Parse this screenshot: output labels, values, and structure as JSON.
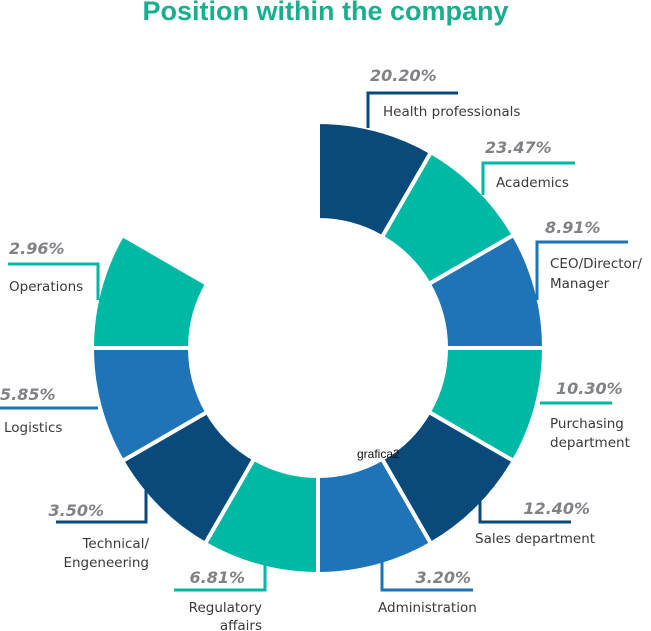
{
  "chart_data": {
    "type": "pie",
    "title": "Position within the company",
    "center_text": "grafica2",
    "categories": [
      {
        "lines": [
          "Health professionals"
        ],
        "pct": "20.20%",
        "value": 20.2,
        "color": "#0a4a7a"
      },
      {
        "lines": [
          "Academics"
        ],
        "pct": "23.47%",
        "value": 23.47,
        "color": "#00b9a5"
      },
      {
        "lines": [
          "CEO/Director/",
          "Manager"
        ],
        "pct": "8.91%",
        "value": 8.91,
        "color": "#1f73b7"
      },
      {
        "lines": [
          "Purchasing",
          "department"
        ],
        "pct": "10.30%",
        "value": 10.3,
        "color": "#00b9a5"
      },
      {
        "lines": [
          "Sales department"
        ],
        "pct": "12.40%",
        "value": 12.4,
        "color": "#0a4a7a"
      },
      {
        "lines": [
          "Administration"
        ],
        "pct": "3.20%",
        "value": 3.2,
        "color": "#1f73b7"
      },
      {
        "lines": [
          "Regulatory",
          "affairs"
        ],
        "pct": "6.81%",
        "value": 6.81,
        "color": "#00b9a5"
      },
      {
        "lines": [
          "Technical/",
          "Engeneering"
        ],
        "pct": "3.50%",
        "value": 3.5,
        "color": "#0a4a7a"
      },
      {
        "lines": [
          "Logistics"
        ],
        "pct": "5.85%",
        "value": 5.85,
        "color": "#1f73b7"
      },
      {
        "lines": [
          "Operations"
        ],
        "pct": "2.96%",
        "value": 2.96,
        "color": "#00b9a5"
      }
    ],
    "title_color": "#17b08f"
  }
}
